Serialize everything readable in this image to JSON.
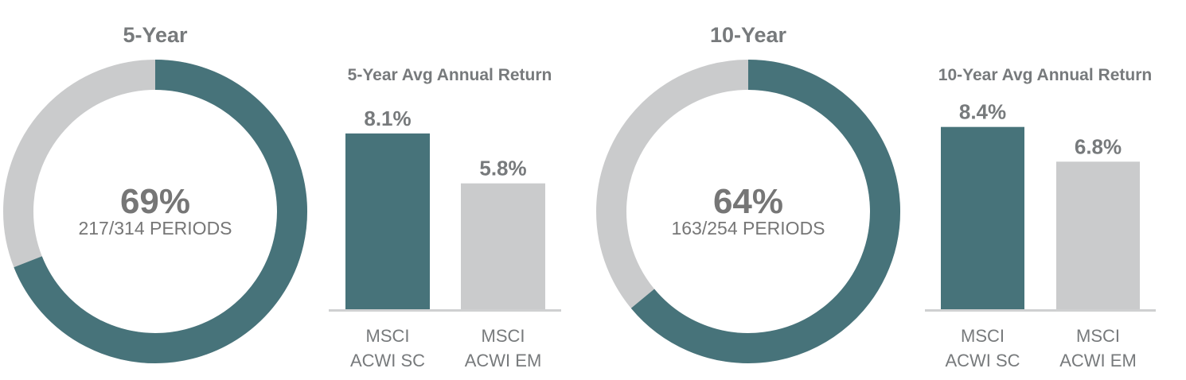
{
  "colors": {
    "primary": "#47737a",
    "secondary": "#cacbcc",
    "baseline": "#cfd0d1",
    "text": "#777a7c"
  },
  "chart_data": [
    {
      "type": "pie",
      "title": "5-Year",
      "values": [
        69,
        31
      ],
      "center_value": "69%",
      "center_label": "217/314 PERIODS"
    },
    {
      "type": "bar",
      "title": "5-Year Avg Annual Return",
      "categories": [
        [
          "MSCI",
          "ACWI SC"
        ],
        [
          "MSCI",
          "ACWI EM"
        ]
      ],
      "values": [
        8.1,
        5.8
      ],
      "value_labels": [
        "8.1%",
        "5.8%"
      ],
      "ylim": [
        0,
        10
      ]
    },
    {
      "type": "pie",
      "title": "10-Year",
      "values": [
        64,
        36
      ],
      "center_value": "64%",
      "center_label": "163/254 PERIODS"
    },
    {
      "type": "bar",
      "title": "10-Year Avg Annual Return",
      "categories": [
        [
          "MSCI",
          "ACWI SC"
        ],
        [
          "MSCI",
          "ACWI EM"
        ]
      ],
      "values": [
        8.4,
        6.8
      ],
      "value_labels": [
        "8.4%",
        "6.8%"
      ],
      "ylim": [
        0,
        10
      ]
    }
  ]
}
